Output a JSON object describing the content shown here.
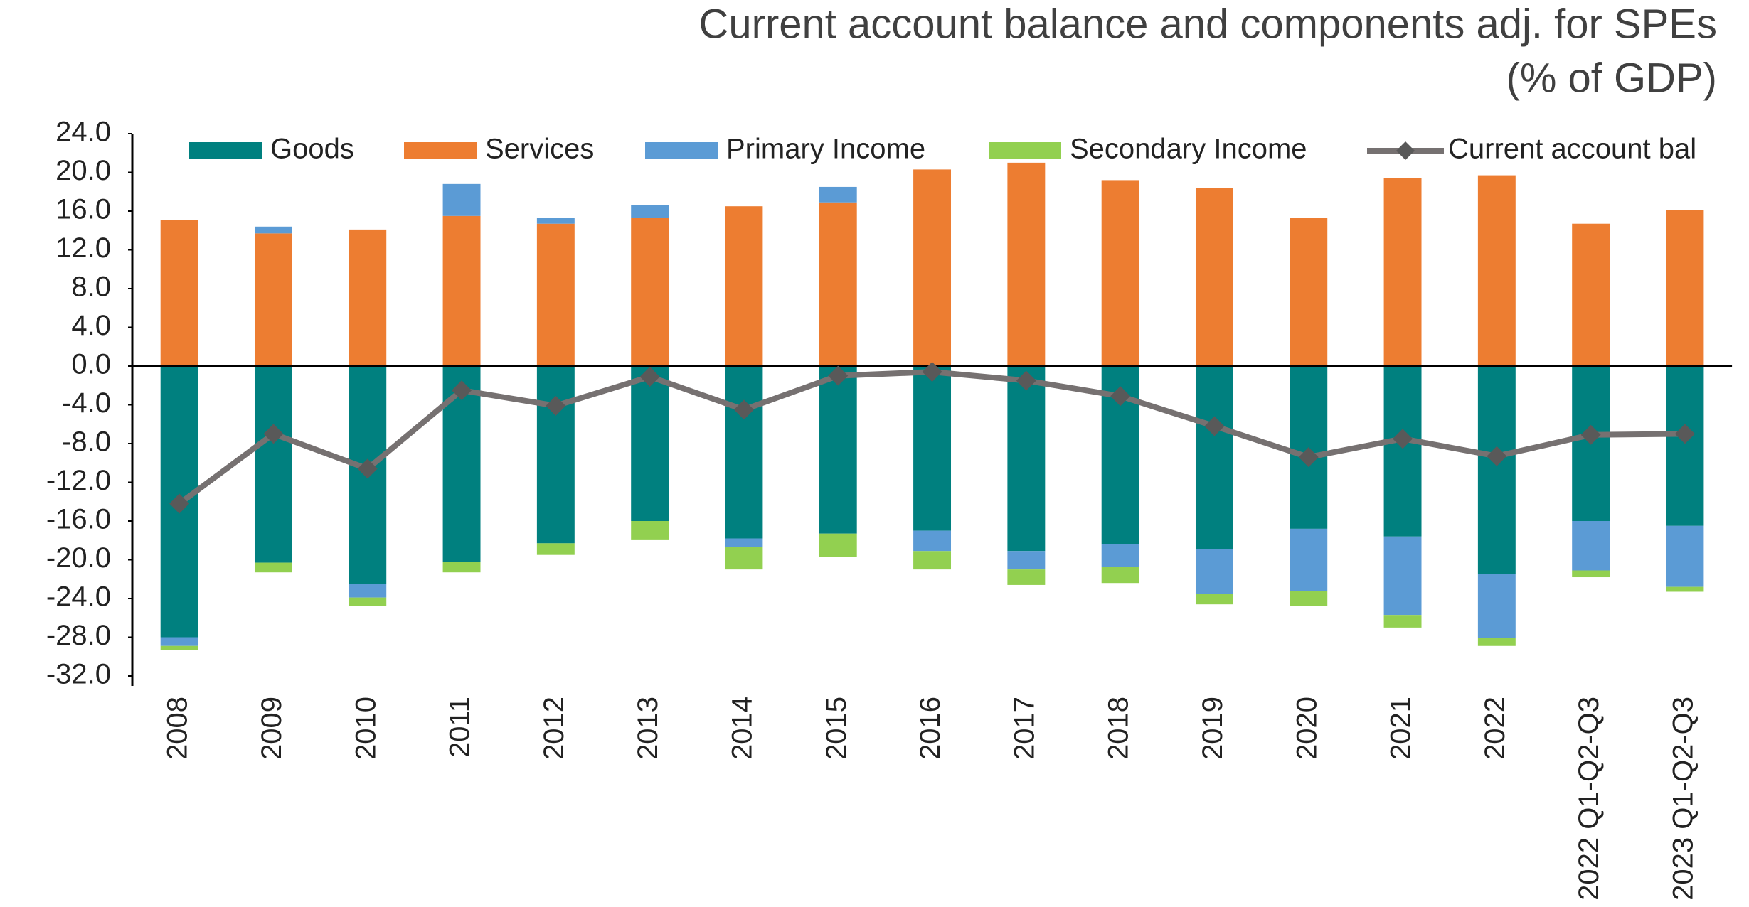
{
  "chart_data": {
    "type": "bar",
    "title": "Current account balance and components adj. for SPEs",
    "subtitle": "(% of GDP)",
    "categories": [
      "2008",
      "2009",
      "2010",
      "2011",
      "2012",
      "2013",
      "2014",
      "2015",
      "2016",
      "2017",
      "2018",
      "2019",
      "2020",
      "2021",
      "2022",
      "2022 Q1-Q2-Q3",
      "2023 Q1-Q2-Q3"
    ],
    "series": [
      {
        "name": "Goods",
        "color": "#00807f",
        "type": "bar",
        "values": [
          -28.0,
          -20.3,
          -22.5,
          -20.2,
          -18.3,
          -16.0,
          -17.8,
          -17.3,
          -17.0,
          -19.1,
          -18.4,
          -18.9,
          -16.8,
          -17.6,
          -21.5,
          -16.0,
          -16.5
        ]
      },
      {
        "name": "Services",
        "color": "#ed7d31",
        "type": "bar",
        "values": [
          15.1,
          13.7,
          14.1,
          15.5,
          14.7,
          15.3,
          16.5,
          16.9,
          20.3,
          21.0,
          19.2,
          18.4,
          15.3,
          19.4,
          19.7,
          14.7,
          16.1
        ]
      },
      {
        "name": "Primary Income",
        "color": "#5b9bd5",
        "type": "bar",
        "values": [
          -0.9,
          0.7,
          -1.4,
          3.3,
          0.6,
          1.3,
          -0.9,
          1.6,
          -2.1,
          -1.9,
          -2.3,
          -4.6,
          -6.4,
          -8.1,
          -6.6,
          -5.1,
          -6.3
        ]
      },
      {
        "name": "Secondary Income",
        "color": "#92d050",
        "type": "bar",
        "values": [
          -0.4,
          -1.0,
          -0.9,
          -1.1,
          -1.2,
          -1.9,
          -2.3,
          -2.4,
          -1.9,
          -1.6,
          -1.7,
          -1.1,
          -1.6,
          -1.3,
          -0.8,
          -0.7,
          -0.5
        ]
      },
      {
        "name": "Current account bal",
        "color": "#767171",
        "type": "line",
        "values": [
          -14.2,
          -7.0,
          -10.6,
          -2.5,
          -4.1,
          -1.1,
          -4.5,
          -1.0,
          -0.6,
          -1.5,
          -3.1,
          -6.2,
          -9.4,
          -7.5,
          -9.3,
          -7.1,
          -7.0
        ]
      }
    ],
    "ylim": [
      -32,
      24
    ],
    "yticks": [
      {
        "value": -32,
        "label": "-32.0"
      },
      {
        "value": -28,
        "label": "-28.0"
      },
      {
        "value": -24,
        "label": "-24.0"
      },
      {
        "value": -20,
        "label": "-20.0"
      },
      {
        "value": -16,
        "label": "-16.0"
      },
      {
        "value": -12,
        "label": "-12.0"
      },
      {
        "value": -8,
        "label": "-8.0"
      },
      {
        "value": -4,
        "label": "-4.0"
      },
      {
        "value": 0,
        "label": "0.0"
      },
      {
        "value": 4,
        "label": "4.0"
      },
      {
        "value": 8,
        "label": "8.0"
      },
      {
        "value": 12,
        "label": "12.0"
      },
      {
        "value": 16,
        "label": "16.0"
      },
      {
        "value": 20,
        "label": "20.0"
      },
      {
        "value": 24,
        "label": "24.0"
      }
    ],
    "grid": false,
    "legend": "top"
  }
}
